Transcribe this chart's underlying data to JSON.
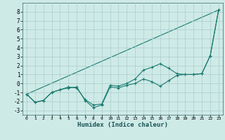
{
  "title": "",
  "xlabel": "Humidex (Indice chaleur)",
  "ylabel": "",
  "background_color": "#ceeae7",
  "grid_color": "#aacccc",
  "line_color": "#1a7a6e",
  "xlim": [
    -0.5,
    23.5
  ],
  "ylim": [
    -3.5,
    9.0
  ],
  "yticks": [
    -3,
    -2,
    -1,
    0,
    1,
    2,
    3,
    4,
    5,
    6,
    7,
    8
  ],
  "xticks": [
    0,
    1,
    2,
    3,
    4,
    5,
    6,
    7,
    8,
    9,
    10,
    11,
    12,
    13,
    14,
    15,
    16,
    17,
    18,
    19,
    20,
    21,
    22,
    23
  ],
  "line1_x": [
    0,
    1,
    2,
    3,
    4,
    5,
    6,
    7,
    8,
    9,
    10,
    11,
    12,
    13,
    14,
    15,
    16,
    17,
    18,
    19,
    20,
    21,
    22,
    23
  ],
  "line1_y": [
    -1.2,
    -2.1,
    -1.9,
    -1.0,
    -0.7,
    -0.5,
    -0.4,
    -1.9,
    -2.7,
    -2.4,
    -0.4,
    -0.5,
    -0.2,
    0.0,
    0.5,
    0.2,
    -0.3,
    0.3,
    0.9,
    1.0,
    1.0,
    1.1,
    3.1,
    8.2
  ],
  "line2_x": [
    0,
    1,
    2,
    3,
    4,
    5,
    6,
    7,
    8,
    9,
    10,
    11,
    12,
    13,
    14,
    15,
    16,
    17,
    18,
    19,
    20,
    21,
    22,
    23
  ],
  "line2_y": [
    -1.2,
    -2.1,
    -1.9,
    -1.0,
    -0.7,
    -0.4,
    -0.5,
    -1.8,
    -2.4,
    -2.3,
    -0.2,
    -0.3,
    0.0,
    0.5,
    1.5,
    1.8,
    2.2,
    1.7,
    1.1,
    1.0,
    1.0,
    1.1,
    3.1,
    8.2
  ],
  "line3_x": [
    0,
    23
  ],
  "line3_y": [
    -1.2,
    8.2
  ],
  "xlabel_fontsize": 6.5,
  "ytick_fontsize": 5.5,
  "xtick_fontsize": 4.5
}
